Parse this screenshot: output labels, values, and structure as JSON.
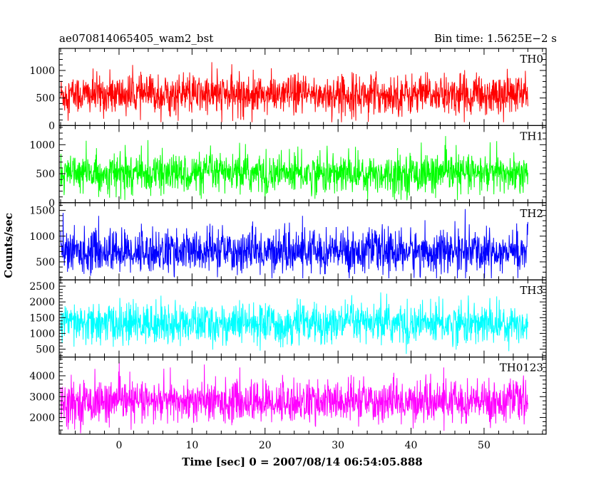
{
  "header": {
    "left_title": "ae070814065405_wam2_bst",
    "right_title": "Bin time: 1.5625E−2 s"
  },
  "chart_data": {
    "type": "line",
    "xlabel": "Time [sec] 0 = 2007/08/14 06:54:05.888",
    "ylabel": "Counts/sec",
    "xlim": [
      -8.2,
      58.5
    ],
    "x_ticks": [
      "0",
      "10",
      "20",
      "30",
      "40",
      "50"
    ],
    "x_tick_values": [
      0,
      10,
      20,
      30,
      40,
      50
    ],
    "data_x_range": [
      -8.0,
      56.0
    ],
    "bin_time_s": 0.015625,
    "panels": [
      {
        "name": "TH0",
        "color": "#ff0000",
        "ylim": [
          0,
          1400
        ],
        "y_ticks": [
          0,
          500,
          1000
        ],
        "y_tick_labels": [
          "0",
          "500",
          "1000"
        ],
        "mean": 560,
        "sigma": 180,
        "min": 60,
        "max": 1400
      },
      {
        "name": "TH1",
        "color": "#00ff00",
        "ylim": [
          0,
          1330
        ],
        "y_ticks": [
          0,
          500,
          1000
        ],
        "y_tick_labels": [
          "0",
          "500",
          "1000"
        ],
        "mean": 500,
        "sigma": 170,
        "min": 40,
        "max": 1300
      },
      {
        "name": "TH2",
        "color": "#0000ff",
        "ylim": [
          150,
          1650
        ],
        "y_ticks": [
          500,
          1000,
          1500
        ],
        "y_tick_labels": [
          "500",
          "1000",
          "1500"
        ],
        "mean": 700,
        "sigma": 210,
        "min": 180,
        "max": 1650
      },
      {
        "name": "TH3",
        "color": "#00ffff",
        "ylim": [
          250,
          2700
        ],
        "y_ticks": [
          500,
          1000,
          1500,
          2000,
          2500
        ],
        "y_tick_labels": [
          "500",
          "1000",
          "1500",
          "2000",
          "2500"
        ],
        "mean": 1300,
        "sigma": 320,
        "min": 350,
        "max": 2700
      },
      {
        "name": "TH0123",
        "color": "#ff00ff",
        "ylim": [
          1200,
          4900
        ],
        "y_ticks": [
          2000,
          3000,
          4000
        ],
        "y_tick_labels": [
          "2000",
          "3000",
          "4000"
        ],
        "mean": 2750,
        "sigma": 500,
        "min": 1200,
        "max": 4900
      }
    ]
  }
}
